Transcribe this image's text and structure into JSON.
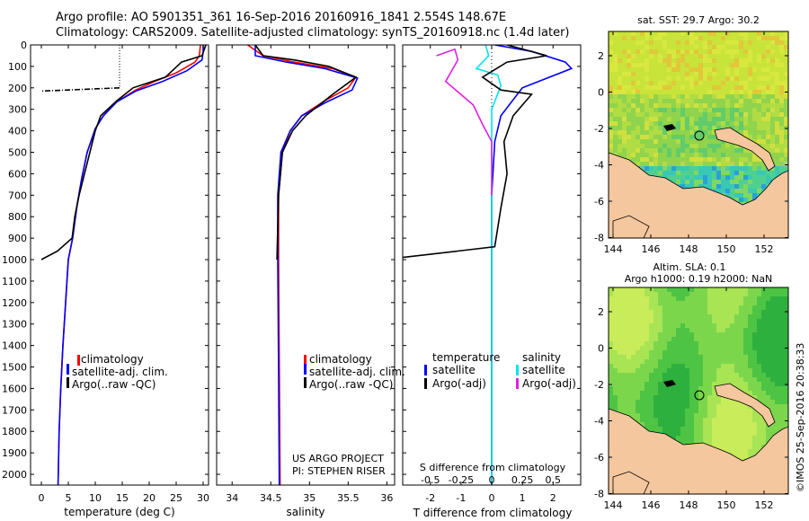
{
  "header": {
    "line1": "Argo profile: AO 5901351_361 16-Sep-2016 20160916_1841 2.554S 148.67E",
    "line2": "Climatology: CARS2009. Satellite-adjusted climatology: synTS_20160918.nc (1.4d later)"
  },
  "credit": "©IMOS 25-Sep-2016 20:38:33",
  "colors": {
    "clim": "#ff0000",
    "sat": "#0000ff",
    "argo": "#000000",
    "sat_sal": "#00e5ee",
    "argo_sal": "#e020e0"
  },
  "chart_data": [
    {
      "type": "line",
      "id": "temperature",
      "xlabel": "temperature (deg C)",
      "xlim": [
        -2,
        31
      ],
      "ylim": [
        2050,
        0
      ],
      "xticks": [
        0,
        5,
        10,
        15,
        20,
        25,
        30
      ],
      "xtick_labels": [
        "0",
        "5",
        "10",
        "15",
        "20",
        "25",
        "30"
      ],
      "yticks": [
        0,
        100,
        200,
        300,
        400,
        500,
        600,
        700,
        800,
        900,
        1000,
        1100,
        1200,
        1300,
        1400,
        1500,
        1600,
        1700,
        1800,
        1900,
        2000
      ],
      "ytick_labels": [
        "0",
        "100",
        "200",
        "300",
        "400",
        "500",
        "600",
        "700",
        "800",
        "900",
        "1000",
        "1100",
        "1200",
        "1300",
        "1400",
        "1500",
        "1600",
        "1700",
        "1800",
        "1900",
        "2000"
      ],
      "legend": [
        "climatology",
        "satellite-adj. clim.",
        "Argo(..raw -QC)"
      ],
      "series": [
        {
          "name": "climatology",
          "color": "clim",
          "points": [
            [
              29.5,
              0
            ],
            [
              29.3,
              50
            ],
            [
              28.5,
              80
            ],
            [
              25,
              130
            ],
            [
              21,
              170
            ],
            [
              17.5,
              210
            ],
            [
              14,
              265
            ],
            [
              11.5,
              330
            ],
            [
              10,
              390
            ],
            [
              8.5,
              500
            ],
            [
              7.5,
              620
            ],
            [
              6.6,
              750
            ],
            [
              5.8,
              900
            ],
            [
              5,
              1000
            ],
            [
              4.5,
              1200
            ],
            [
              4,
              1400
            ],
            [
              3.6,
              1600
            ],
            [
              3.3,
              1800
            ],
            [
              3.1,
              2050
            ]
          ]
        },
        {
          "name": "satellite",
          "color": "sat",
          "points": [
            [
              30,
              0
            ],
            [
              30,
              30
            ],
            [
              29.8,
              70
            ],
            [
              27,
              120
            ],
            [
              22.5,
              170
            ],
            [
              17.5,
              215
            ],
            [
              14,
              265
            ],
            [
              11.5,
              330
            ],
            [
              10,
              390
            ],
            [
              8.5,
              500
            ],
            [
              7.5,
              620
            ],
            [
              6.6,
              750
            ],
            [
              5.8,
              900
            ],
            [
              5,
              1000
            ],
            [
              4.5,
              1200
            ],
            [
              4,
              1400
            ],
            [
              3.6,
              1600
            ],
            [
              3.3,
              1800
            ],
            [
              3.1,
              2050
            ]
          ]
        },
        {
          "name": "argo",
          "color": "argo",
          "points": [
            [
              30.5,
              0
            ],
            [
              29.8,
              50
            ],
            [
              26,
              80
            ],
            [
              23,
              150
            ],
            [
              17,
              200
            ],
            [
              14,
              260
            ],
            [
              11,
              330
            ],
            [
              10,
              400
            ],
            [
              9,
              500
            ],
            [
              8,
              600
            ],
            [
              7,
              700
            ],
            [
              6.2,
              800
            ],
            [
              5.7,
              900
            ],
            [
              3,
              960
            ],
            [
              0,
              1000
            ]
          ]
        },
        {
          "name": "argo-spike",
          "color": "argo",
          "dashed": true,
          "points": [
            [
              14.5,
              200
            ],
            [
              0,
              215
            ]
          ]
        },
        {
          "name": "argo-dotted",
          "color": "argo",
          "dotted": true,
          "points": [
            [
              14.5,
              0
            ],
            [
              14.5,
              200
            ]
          ]
        }
      ]
    },
    {
      "type": "line",
      "id": "salinity",
      "xlabel": "salinity",
      "xlim": [
        33.8,
        36.1
      ],
      "ylim": [
        2050,
        0
      ],
      "xticks": [
        34,
        34.5,
        35,
        35.5,
        36
      ],
      "xtick_labels": [
        "34",
        "34.5",
        "35",
        "35.5",
        "36"
      ],
      "legend": [
        "climatology",
        "satellite-adj. clim.",
        "Argo(..raw -QC)"
      ],
      "project": [
        "US ARGO PROJECT",
        "PI: STEPHEN RISER"
      ],
      "series": [
        {
          "name": "climatology",
          "color": "clim",
          "points": [
            [
              34.2,
              0
            ],
            [
              34.4,
              50
            ],
            [
              34.8,
              80
            ],
            [
              35.3,
              110
            ],
            [
              35.6,
              150
            ],
            [
              35.5,
              200
            ],
            [
              35.2,
              260
            ],
            [
              34.9,
              330
            ],
            [
              34.75,
              400
            ],
            [
              34.65,
              500
            ],
            [
              34.6,
              700
            ],
            [
              34.6,
              1000
            ],
            [
              34.61,
              1500
            ],
            [
              34.62,
              2050
            ]
          ]
        },
        {
          "name": "satellite",
          "color": "sat",
          "points": [
            [
              34.3,
              0
            ],
            [
              34.3,
              50
            ],
            [
              34.7,
              80
            ],
            [
              35.2,
              110
            ],
            [
              35.62,
              155
            ],
            [
              35.55,
              210
            ],
            [
              35.2,
              270
            ],
            [
              34.9,
              330
            ],
            [
              34.75,
              400
            ],
            [
              34.63,
              500
            ],
            [
              34.59,
              700
            ],
            [
              34.59,
              1000
            ],
            [
              34.6,
              1500
            ],
            [
              34.61,
              2050
            ]
          ]
        },
        {
          "name": "argo",
          "color": "argo",
          "points": [
            [
              34.3,
              0
            ],
            [
              34.4,
              50
            ],
            [
              34.8,
              70
            ],
            [
              35.25,
              100
            ],
            [
              35.6,
              150
            ],
            [
              35.3,
              230
            ],
            [
              34.95,
              330
            ],
            [
              34.78,
              400
            ],
            [
              34.65,
              500
            ],
            [
              34.6,
              700
            ],
            [
              34.58,
              1000
            ]
          ]
        }
      ]
    },
    {
      "type": "line",
      "id": "difference",
      "xlabel": "T difference from climatology",
      "xlabel_top": "S difference from climatology",
      "xlim": [
        -2.9,
        2.9
      ],
      "ylim": [
        2050,
        0
      ],
      "xticks": [
        -2,
        -1,
        0,
        1,
        2
      ],
      "xtick_labels": [
        "-2",
        "-1",
        "0",
        "1",
        "2"
      ],
      "sticks": [
        -0.5,
        -0.25,
        0,
        0.25,
        0.5
      ],
      "stick_labels": [
        "-0.5",
        "-0.25",
        "0",
        "0.25",
        "0.5"
      ],
      "legend_t_title": "temperature",
      "legend_s_title": "salinity",
      "legend_t": [
        "satellite",
        "Argo(-adj)"
      ],
      "legend_s": [
        "satellite",
        "Argo(-adj)"
      ],
      "series": [
        {
          "name": "T satellite",
          "color": "sat",
          "points": [
            [
              0.1,
              0
            ],
            [
              1.3,
              30
            ],
            [
              2.4,
              80
            ],
            [
              2.6,
              110
            ],
            [
              1,
              200
            ],
            [
              0.3,
              330
            ],
            [
              0.1,
              450
            ],
            [
              0,
              700
            ],
            [
              0,
              2050
            ]
          ]
        },
        {
          "name": "S satellite",
          "color": "sat_sal",
          "points": [
            [
              -0.2,
              0
            ],
            [
              -0.1,
              50
            ],
            [
              -0.5,
              110
            ],
            [
              0.2,
              140
            ],
            [
              0.3,
              190
            ],
            [
              0,
              300
            ],
            [
              0,
              700
            ],
            [
              0,
              2050
            ]
          ]
        },
        {
          "name": "T argo",
          "color": "argo",
          "points": [
            [
              0.5,
              0
            ],
            [
              1.8,
              50
            ],
            [
              0.5,
              80
            ],
            [
              -0.3,
              150
            ],
            [
              0.3,
              210
            ],
            [
              1.3,
              230
            ],
            [
              0.7,
              330
            ],
            [
              0.4,
              450
            ],
            [
              0.5,
              600
            ],
            [
              0.3,
              760
            ],
            [
              0.1,
              940
            ],
            [
              -2.9,
              990
            ]
          ]
        },
        {
          "name": "S argo",
          "color": "argo_sal",
          "points": [
            [
              -1.8,
              50
            ],
            [
              -1.2,
              20
            ],
            [
              -1.1,
              70
            ],
            [
              -1.5,
              170
            ],
            [
              -0.6,
              280
            ],
            [
              -0.3,
              370
            ],
            [
              0,
              450
            ],
            [
              0,
              700
            ]
          ]
        }
      ]
    }
  ],
  "sst_map": {
    "title": "sat. SST: 29.7 Argo: 30.2",
    "xtick_labels": [
      "144",
      "146",
      "148",
      "150",
      "152"
    ],
    "ytick_labels": [
      "2",
      "0",
      "-2",
      "-4",
      "-6",
      "-8"
    ]
  },
  "sla_map": {
    "title1": "Altim. SLA: 0.1",
    "title2": "Argo h1000: 0.19 h2000: NaN",
    "xtick_labels": [
      "144",
      "146",
      "148",
      "150",
      "152"
    ],
    "ytick_labels": [
      "2",
      "0",
      "-2",
      "-4",
      "-6",
      "-8"
    ]
  }
}
